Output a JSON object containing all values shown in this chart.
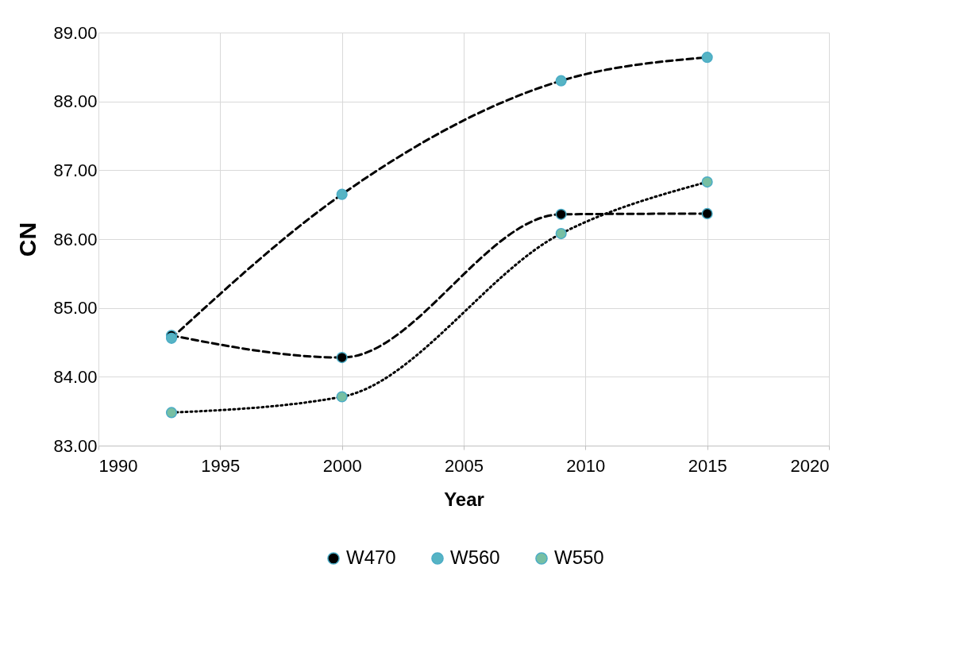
{
  "chart_data": {
    "type": "line",
    "xlabel": "Year",
    "ylabel": "CN",
    "x": [
      1993,
      2000,
      2009,
      2015
    ],
    "xlim": [
      1990,
      2020
    ],
    "xticks": [
      1990,
      1995,
      2000,
      2005,
      2010,
      2015,
      2020
    ],
    "ylim": [
      83,
      89
    ],
    "yticks": [
      {
        "value": 83,
        "label": "83.00"
      },
      {
        "value": 84,
        "label": "84.00"
      },
      {
        "value": 85,
        "label": "85.00"
      },
      {
        "value": 86,
        "label": "86.00"
      },
      {
        "value": 87,
        "label": "87.00"
      },
      {
        "value": 88,
        "label": "88.00"
      },
      {
        "value": 89,
        "label": "89.00"
      }
    ],
    "grid": true,
    "legend": "bottom",
    "marker": "circle",
    "series": [
      {
        "name": "W470",
        "color": "#000000",
        "line_style": "dashed",
        "values": [
          84.6,
          84.28,
          86.36,
          86.37
        ]
      },
      {
        "name": "W560",
        "color": "#56b4c4",
        "line_style": "dashed",
        "values": [
          84.56,
          86.65,
          88.3,
          88.64
        ]
      },
      {
        "name": "W550",
        "color": "#77bfa3",
        "line_style": "dotted",
        "values": [
          83.48,
          83.71,
          86.08,
          86.83
        ]
      }
    ]
  }
}
